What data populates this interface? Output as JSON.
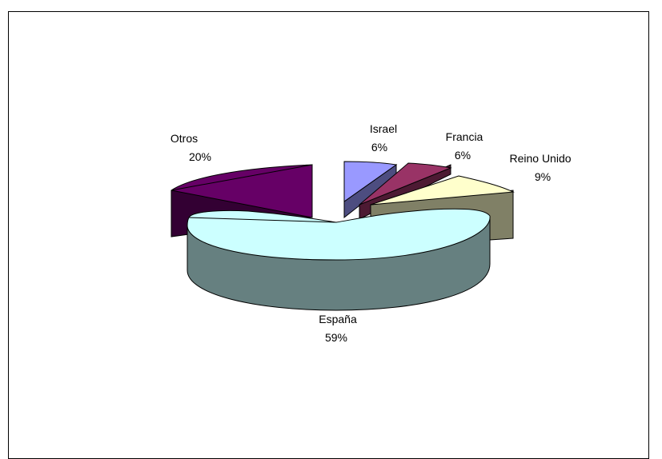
{
  "chart_data": {
    "type": "pie",
    "style": "3d-exploded",
    "slices": [
      {
        "label": "España",
        "percent_label": "59%",
        "value": 59,
        "color": "#ccffff",
        "side": "#668080"
      },
      {
        "label": "Otros",
        "percent_label": "20%",
        "value": 20,
        "color": "#660066",
        "side": "#330033"
      },
      {
        "label": "Israel",
        "percent_label": "6%",
        "value": 6,
        "color": "#9999ff",
        "side": "#4d4d80"
      },
      {
        "label": "Francia",
        "percent_label": "6%",
        "value": 6,
        "color": "#993366",
        "side": "#4d1a33"
      },
      {
        "label": "Reino Unido",
        "percent_label": "9%",
        "value": 9,
        "color": "#ffffcc",
        "side": "#808066"
      }
    ]
  }
}
